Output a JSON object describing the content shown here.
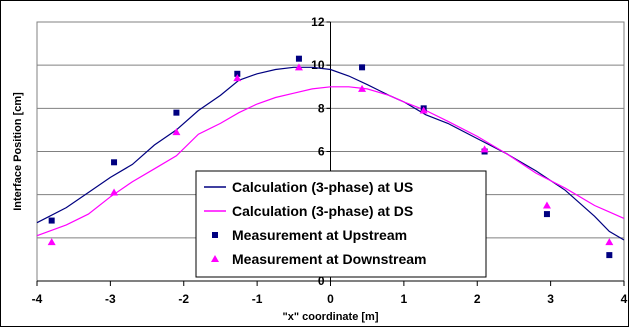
{
  "chart_data": {
    "type": "line",
    "title": "",
    "xlabel": "\"x\" coordinate [m]",
    "ylabel": "Interface Position [cm]",
    "xlim": [
      -4,
      4
    ],
    "ylim": [
      0,
      12
    ],
    "x_ticks": [
      -4,
      -3,
      -2,
      -1,
      0,
      1,
      2,
      3,
      4
    ],
    "y_ticks": [
      0,
      2,
      4,
      6,
      8,
      10,
      12
    ],
    "y_tick_labels": [
      "0",
      "2",
      "4",
      "6",
      "8",
      "10",
      "12"
    ],
    "grid": {
      "horizontal": true,
      "vertical": false
    },
    "legend_placement": "bottom-center",
    "series": [
      {
        "name": "Calculation (3-phase) at US",
        "kind": "line",
        "color": "#000080",
        "x": [
          -4.0,
          -3.6,
          -3.3,
          -3.0,
          -2.7,
          -2.4,
          -2.1,
          -1.8,
          -1.5,
          -1.25,
          -1.0,
          -0.75,
          -0.5,
          -0.25,
          0.0,
          0.25,
          0.5,
          0.8,
          1.0,
          1.3,
          1.6,
          2.0,
          2.4,
          2.8,
          3.2,
          3.6,
          3.8,
          4.0
        ],
        "y": [
          2.7,
          3.4,
          4.1,
          4.8,
          5.4,
          6.3,
          7.0,
          7.9,
          8.6,
          9.3,
          9.6,
          9.8,
          9.9,
          9.9,
          9.8,
          9.5,
          9.1,
          8.6,
          8.3,
          7.7,
          7.3,
          6.6,
          5.9,
          5.1,
          4.2,
          3.0,
          2.3,
          1.9
        ]
      },
      {
        "name": "Calculation (3-phase) at DS",
        "kind": "line",
        "color": "#ff00ff",
        "x": [
          -4.0,
          -3.6,
          -3.3,
          -3.0,
          -2.7,
          -2.4,
          -2.1,
          -1.8,
          -1.5,
          -1.25,
          -1.0,
          -0.75,
          -0.5,
          -0.25,
          0.0,
          0.25,
          0.5,
          0.8,
          1.0,
          1.3,
          1.6,
          2.0,
          2.4,
          2.8,
          3.2,
          3.6,
          3.8,
          4.0
        ],
        "y": [
          2.1,
          2.6,
          3.1,
          3.9,
          4.6,
          5.2,
          5.8,
          6.8,
          7.3,
          7.8,
          8.2,
          8.5,
          8.7,
          8.9,
          9.0,
          9.0,
          8.9,
          8.6,
          8.3,
          7.9,
          7.4,
          6.7,
          5.9,
          5.0,
          4.3,
          3.5,
          3.2,
          2.9
        ]
      },
      {
        "name": "Measurement at Upstream",
        "kind": "scatter",
        "marker": "square",
        "color": "#000080",
        "x": [
          -3.8,
          -2.95,
          -2.1,
          -1.27,
          -0.43,
          0.43,
          1.27,
          2.1,
          2.95,
          3.8
        ],
        "y": [
          2.8,
          5.5,
          7.8,
          9.6,
          10.3,
          9.9,
          8.0,
          6.0,
          3.1,
          1.2
        ]
      },
      {
        "name": "Measurement at Downstream",
        "kind": "scatter",
        "marker": "triangle",
        "color": "#ff00ff",
        "x": [
          -3.8,
          -2.95,
          -2.1,
          -1.27,
          -0.43,
          0.43,
          1.27,
          2.1,
          2.95,
          3.8
        ],
        "y": [
          1.8,
          4.1,
          6.9,
          9.4,
          9.9,
          8.9,
          7.9,
          6.1,
          3.5,
          1.8
        ]
      }
    ]
  }
}
